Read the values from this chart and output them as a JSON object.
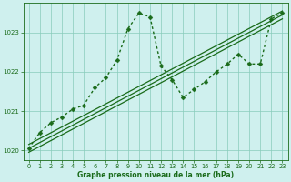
{
  "background_color": "#cff0ee",
  "grid_color": "#88ccbb",
  "line_color": "#1a6b1a",
  "title": "Graphe pression niveau de la mer (hPa)",
  "xlim": [
    -0.5,
    23.5
  ],
  "ylim": [
    1019.75,
    1023.75
  ],
  "xticks": [
    0,
    1,
    2,
    3,
    4,
    5,
    6,
    7,
    8,
    9,
    10,
    11,
    12,
    13,
    14,
    15,
    16,
    17,
    18,
    19,
    20,
    21,
    22,
    23
  ],
  "yticks": [
    1020,
    1021,
    1022,
    1023
  ],
  "series": [
    {
      "x": [
        0,
        23
      ],
      "y": [
        1020.15,
        1023.55
      ],
      "style": "solid",
      "marker": null,
      "linewidth": 0.9
    },
    {
      "x": [
        0,
        23
      ],
      "y": [
        1020.05,
        1023.45
      ],
      "style": "solid",
      "marker": null,
      "linewidth": 0.9
    },
    {
      "x": [
        0,
        23
      ],
      "y": [
        1019.95,
        1023.35
      ],
      "style": "solid",
      "marker": null,
      "linewidth": 0.9
    },
    {
      "x": [
        0,
        1,
        2,
        3,
        4,
        5,
        6,
        7,
        8,
        9,
        10,
        11,
        12,
        13,
        14,
        15,
        16,
        17,
        18,
        19,
        20,
        21,
        22,
        23
      ],
      "y": [
        1020.05,
        1020.45,
        1020.7,
        1020.85,
        1021.05,
        1021.15,
        1021.6,
        1021.85,
        1022.3,
        1023.1,
        1023.5,
        1023.4,
        1022.15,
        1021.8,
        1021.35,
        1021.55,
        1021.75,
        1022.0,
        1022.2,
        1022.45,
        1022.2,
        1022.2,
        1023.35,
        1023.5
      ],
      "style": "dotted",
      "marker": "D",
      "linewidth": 1.0,
      "markersize": 2.5
    }
  ]
}
